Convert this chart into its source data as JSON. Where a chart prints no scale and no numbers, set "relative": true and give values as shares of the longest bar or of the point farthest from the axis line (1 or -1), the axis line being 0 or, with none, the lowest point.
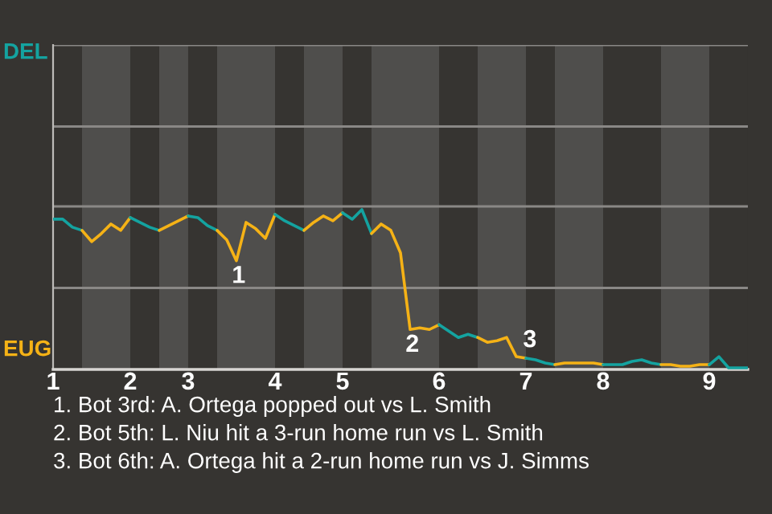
{
  "chart_data": {
    "type": "line",
    "relative": true,
    "categories": [
      "1",
      null,
      null,
      null,
      null,
      null,
      null,
      null,
      "2",
      null,
      null,
      null,
      null,
      null,
      "3",
      null,
      null,
      null,
      null,
      null,
      null,
      null,
      null,
      "4",
      null,
      null,
      null,
      null,
      null,
      null,
      "5",
      null,
      null,
      null,
      null,
      null,
      null,
      null,
      null,
      null,
      "6",
      null,
      null,
      null,
      null,
      null,
      null,
      null,
      null,
      "7",
      null,
      null,
      null,
      null,
      null,
      null,
      null,
      "8",
      null,
      null,
      null,
      null,
      null,
      null,
      null,
      null,
      null,
      null,
      "9",
      null,
      null,
      null,
      null
    ],
    "marker": "none",
    "line_style": "solid",
    "ref_lines": [
      {
        "axis": "y",
        "value": 0.51,
        "color": "#8a8886"
      },
      {
        "axis": "y",
        "value": 1.02,
        "color": "#8a8886"
      },
      {
        "axis": "y",
        "value": 1.52,
        "color": "#8a8886"
      },
      {
        "axis": "y",
        "value": 2.03,
        "color": "#8a8886"
      }
    ],
    "series": [
      {
        "color": "#14a3a0",
        "values": [
          0.94,
          0.94,
          0.89,
          0.87,
          null,
          null,
          null,
          null,
          null,
          null,
          null,
          null,
          null,
          null,
          null,
          null,
          null,
          null,
          null,
          null,
          null,
          null,
          null,
          null,
          null,
          null,
          null,
          null,
          null,
          null,
          null,
          null,
          null,
          null,
          null,
          null,
          null,
          null,
          null,
          null,
          null,
          null,
          null,
          null,
          null,
          null,
          null,
          null,
          null,
          null,
          null,
          null,
          null,
          null,
          null,
          null,
          null,
          null,
          null,
          null,
          null,
          null,
          null,
          null,
          null,
          null,
          null,
          null,
          null,
          null,
          null,
          null,
          null
        ]
      },
      {
        "color": "#f5b216",
        "values": [
          null,
          null,
          null,
          0.87,
          0.8,
          0.85,
          0.91,
          0.87,
          0.95,
          null,
          null,
          null,
          null,
          null,
          null,
          null,
          null,
          null,
          null,
          null,
          null,
          null,
          null,
          null,
          null,
          null,
          null,
          null,
          null,
          null,
          null,
          null,
          null,
          null,
          null,
          null,
          null,
          null,
          null,
          null,
          null,
          null,
          null,
          null,
          null,
          null,
          null,
          null,
          null,
          null,
          null,
          null,
          null,
          null,
          null,
          null,
          null,
          null,
          null,
          null,
          null,
          null,
          null,
          null,
          null,
          null,
          null,
          null,
          null,
          null,
          null,
          null,
          null
        ]
      },
      {
        "color": "#14a3a0",
        "values": [
          null,
          null,
          null,
          null,
          null,
          null,
          null,
          null,
          0.95,
          0.92,
          0.89,
          0.87,
          null,
          null,
          null,
          null,
          null,
          null,
          null,
          null,
          null,
          null,
          null,
          null,
          null,
          null,
          null,
          null,
          null,
          null,
          null,
          null,
          null,
          null,
          null,
          null,
          null,
          null,
          null,
          null,
          null,
          null,
          null,
          null,
          null,
          null,
          null,
          null,
          null,
          null,
          null,
          null,
          null,
          null,
          null,
          null,
          null,
          null,
          null,
          null,
          null,
          null,
          null,
          null,
          null,
          null,
          null,
          null,
          null,
          null,
          null,
          null,
          null
        ]
      },
      {
        "color": "#f5b216",
        "values": [
          null,
          null,
          null,
          null,
          null,
          null,
          null,
          null,
          null,
          null,
          null,
          0.87,
          0.9,
          0.93,
          0.96,
          null,
          null,
          null,
          null,
          null,
          null,
          null,
          null,
          null,
          null,
          null,
          null,
          null,
          null,
          null,
          null,
          null,
          null,
          null,
          null,
          null,
          null,
          null,
          null,
          null,
          null,
          null,
          null,
          null,
          null,
          null,
          null,
          null,
          null,
          null,
          null,
          null,
          null,
          null,
          null,
          null,
          null,
          null,
          null,
          null,
          null,
          null,
          null,
          null,
          null,
          null,
          null,
          null,
          null,
          null,
          null,
          null,
          null
        ]
      },
      {
        "color": "#14a3a0",
        "values": [
          null,
          null,
          null,
          null,
          null,
          null,
          null,
          null,
          null,
          null,
          null,
          null,
          null,
          null,
          0.96,
          0.95,
          0.9,
          0.87,
          null,
          null,
          null,
          null,
          null,
          null,
          null,
          null,
          null,
          null,
          null,
          null,
          null,
          null,
          null,
          null,
          null,
          null,
          null,
          null,
          null,
          null,
          null,
          null,
          null,
          null,
          null,
          null,
          null,
          null,
          null,
          null,
          null,
          null,
          null,
          null,
          null,
          null,
          null,
          null,
          null,
          null,
          null,
          null,
          null,
          null,
          null,
          null,
          null,
          null,
          null,
          null,
          null,
          null,
          null
        ]
      },
      {
        "color": "#f5b216",
        "values": [
          null,
          null,
          null,
          null,
          null,
          null,
          null,
          null,
          null,
          null,
          null,
          null,
          null,
          null,
          null,
          null,
          null,
          0.87,
          0.81,
          0.68,
          0.92,
          0.88,
          0.82,
          0.97,
          null,
          null,
          null,
          null,
          null,
          null,
          null,
          null,
          null,
          null,
          null,
          null,
          null,
          null,
          null,
          null,
          null,
          null,
          null,
          null,
          null,
          null,
          null,
          null,
          null,
          null,
          null,
          null,
          null,
          null,
          null,
          null,
          null,
          null,
          null,
          null,
          null,
          null,
          null,
          null,
          null,
          null,
          null,
          null,
          null,
          null,
          null,
          null,
          null
        ]
      },
      {
        "color": "#14a3a0",
        "values": [
          null,
          null,
          null,
          null,
          null,
          null,
          null,
          null,
          null,
          null,
          null,
          null,
          null,
          null,
          null,
          null,
          null,
          null,
          null,
          null,
          null,
          null,
          null,
          0.97,
          0.93,
          0.9,
          0.87,
          null,
          null,
          null,
          null,
          null,
          null,
          null,
          null,
          null,
          null,
          null,
          null,
          null,
          null,
          null,
          null,
          null,
          null,
          null,
          null,
          null,
          null,
          null,
          null,
          null,
          null,
          null,
          null,
          null,
          null,
          null,
          null,
          null,
          null,
          null,
          null,
          null,
          null,
          null,
          null,
          null,
          null,
          null,
          null,
          null,
          null
        ]
      },
      {
        "color": "#f5b216",
        "values": [
          null,
          null,
          null,
          null,
          null,
          null,
          null,
          null,
          null,
          null,
          null,
          null,
          null,
          null,
          null,
          null,
          null,
          null,
          null,
          null,
          null,
          null,
          null,
          null,
          null,
          null,
          0.87,
          0.92,
          0.96,
          0.93,
          0.98,
          null,
          null,
          null,
          null,
          null,
          null,
          null,
          null,
          null,
          null,
          null,
          null,
          null,
          null,
          null,
          null,
          null,
          null,
          null,
          null,
          null,
          null,
          null,
          null,
          null,
          null,
          null,
          null,
          null,
          null,
          null,
          null,
          null,
          null,
          null,
          null,
          null,
          null,
          null,
          null,
          null,
          null
        ]
      },
      {
        "color": "#14a3a0",
        "values": [
          null,
          null,
          null,
          null,
          null,
          null,
          null,
          null,
          null,
          null,
          null,
          null,
          null,
          null,
          null,
          null,
          null,
          null,
          null,
          null,
          null,
          null,
          null,
          null,
          null,
          null,
          null,
          null,
          null,
          null,
          0.98,
          0.94,
          1,
          0.85,
          null,
          null,
          null,
          null,
          null,
          null,
          null,
          null,
          null,
          null,
          null,
          null,
          null,
          null,
          null,
          null,
          null,
          null,
          null,
          null,
          null,
          null,
          null,
          null,
          null,
          null,
          null,
          null,
          null,
          null,
          null,
          null,
          null,
          null,
          null,
          null,
          null,
          null,
          null
        ]
      },
      {
        "color": "#f5b216",
        "values": [
          null,
          null,
          null,
          null,
          null,
          null,
          null,
          null,
          null,
          null,
          null,
          null,
          null,
          null,
          null,
          null,
          null,
          null,
          null,
          null,
          null,
          null,
          null,
          null,
          null,
          null,
          null,
          null,
          null,
          null,
          null,
          null,
          null,
          0.85,
          0.91,
          0.87,
          0.73,
          0.25,
          0.26,
          0.25,
          0.28,
          null,
          null,
          null,
          null,
          null,
          null,
          null,
          null,
          null,
          null,
          null,
          null,
          null,
          null,
          null,
          null,
          null,
          null,
          null,
          null,
          null,
          null,
          null,
          null,
          null,
          null,
          null,
          null,
          null,
          null,
          null,
          null
        ]
      },
      {
        "color": "#14a3a0",
        "values": [
          null,
          null,
          null,
          null,
          null,
          null,
          null,
          null,
          null,
          null,
          null,
          null,
          null,
          null,
          null,
          null,
          null,
          null,
          null,
          null,
          null,
          null,
          null,
          null,
          null,
          null,
          null,
          null,
          null,
          null,
          null,
          null,
          null,
          null,
          null,
          null,
          null,
          null,
          null,
          null,
          0.28,
          0.24,
          0.2,
          0.22,
          0.2,
          null,
          null,
          null,
          null,
          null,
          null,
          null,
          null,
          null,
          null,
          null,
          null,
          null,
          null,
          null,
          null,
          null,
          null,
          null,
          null,
          null,
          null,
          null,
          null,
          null,
          null,
          null,
          null
        ]
      },
      {
        "color": "#f5b216",
        "values": [
          null,
          null,
          null,
          null,
          null,
          null,
          null,
          null,
          null,
          null,
          null,
          null,
          null,
          null,
          null,
          null,
          null,
          null,
          null,
          null,
          null,
          null,
          null,
          null,
          null,
          null,
          null,
          null,
          null,
          null,
          null,
          null,
          null,
          null,
          null,
          null,
          null,
          null,
          null,
          null,
          null,
          null,
          null,
          null,
          0.2,
          0.17,
          0.18,
          0.2,
          0.08,
          0.07,
          null,
          null,
          null,
          null,
          null,
          null,
          null,
          null,
          null,
          null,
          null,
          null,
          null,
          null,
          null,
          null,
          null,
          null,
          null,
          null,
          null,
          null,
          null
        ]
      },
      {
        "color": "#14a3a0",
        "values": [
          null,
          null,
          null,
          null,
          null,
          null,
          null,
          null,
          null,
          null,
          null,
          null,
          null,
          null,
          null,
          null,
          null,
          null,
          null,
          null,
          null,
          null,
          null,
          null,
          null,
          null,
          null,
          null,
          null,
          null,
          null,
          null,
          null,
          null,
          null,
          null,
          null,
          null,
          null,
          null,
          null,
          null,
          null,
          null,
          null,
          null,
          null,
          null,
          null,
          0.07,
          0.06,
          0.04,
          0.03,
          null,
          null,
          null,
          null,
          null,
          null,
          null,
          null,
          null,
          null,
          null,
          null,
          null,
          null,
          null,
          null,
          null,
          null,
          null,
          null
        ]
      },
      {
        "color": "#f5b216",
        "values": [
          null,
          null,
          null,
          null,
          null,
          null,
          null,
          null,
          null,
          null,
          null,
          null,
          null,
          null,
          null,
          null,
          null,
          null,
          null,
          null,
          null,
          null,
          null,
          null,
          null,
          null,
          null,
          null,
          null,
          null,
          null,
          null,
          null,
          null,
          null,
          null,
          null,
          null,
          null,
          null,
          null,
          null,
          null,
          null,
          null,
          null,
          null,
          null,
          null,
          null,
          null,
          null,
          0.03,
          0.04,
          0.04,
          0.04,
          0.04,
          0.03,
          null,
          null,
          null,
          null,
          null,
          null,
          null,
          null,
          null,
          null,
          null,
          null,
          null,
          null,
          null
        ]
      },
      {
        "color": "#14a3a0",
        "values": [
          null,
          null,
          null,
          null,
          null,
          null,
          null,
          null,
          null,
          null,
          null,
          null,
          null,
          null,
          null,
          null,
          null,
          null,
          null,
          null,
          null,
          null,
          null,
          null,
          null,
          null,
          null,
          null,
          null,
          null,
          null,
          null,
          null,
          null,
          null,
          null,
          null,
          null,
          null,
          null,
          null,
          null,
          null,
          null,
          null,
          null,
          null,
          null,
          null,
          null,
          null,
          null,
          null,
          null,
          null,
          null,
          null,
          0.03,
          0.03,
          0.03,
          0.05,
          0.06,
          0.04,
          0.03,
          null,
          null,
          null,
          null,
          null,
          null,
          null,
          null,
          null
        ]
      },
      {
        "color": "#f5b216",
        "values": [
          null,
          null,
          null,
          null,
          null,
          null,
          null,
          null,
          null,
          null,
          null,
          null,
          null,
          null,
          null,
          null,
          null,
          null,
          null,
          null,
          null,
          null,
          null,
          null,
          null,
          null,
          null,
          null,
          null,
          null,
          null,
          null,
          null,
          null,
          null,
          null,
          null,
          null,
          null,
          null,
          null,
          null,
          null,
          null,
          null,
          null,
          null,
          null,
          null,
          null,
          null,
          null,
          null,
          null,
          null,
          null,
          null,
          null,
          null,
          null,
          null,
          null,
          null,
          0.03,
          0.03,
          0.02,
          0.02,
          0.03,
          0.03,
          null,
          null,
          null,
          null
        ]
      },
      {
        "color": "#14a3a0",
        "values": [
          null,
          null,
          null,
          null,
          null,
          null,
          null,
          null,
          null,
          null,
          null,
          null,
          null,
          null,
          null,
          null,
          null,
          null,
          null,
          null,
          null,
          null,
          null,
          null,
          null,
          null,
          null,
          null,
          null,
          null,
          null,
          null,
          null,
          null,
          null,
          null,
          null,
          null,
          null,
          null,
          null,
          null,
          null,
          null,
          null,
          null,
          null,
          null,
          null,
          null,
          null,
          null,
          null,
          null,
          null,
          null,
          null,
          null,
          null,
          null,
          null,
          null,
          null,
          null,
          null,
          null,
          null,
          null,
          0.03,
          0.08,
          0.01,
          0.01,
          0.01
        ]
      }
    ],
    "annotations": [
      "DEL",
      "EUG",
      {
        "text": "1",
        "y": 0.68
      },
      {
        "text": "2",
        "y": 0.25
      },
      {
        "text": "3",
        "y": 0.08
      },
      "1. Bot 3rd: A. Ortega popped out vs L. Smith",
      "2. Bot 5th: L. Niu hit a 3-run home run vs L. Smith",
      "3. Bot 6th: A. Ortega hit a 2-run home run vs J. Simms"
    ]
  }
}
